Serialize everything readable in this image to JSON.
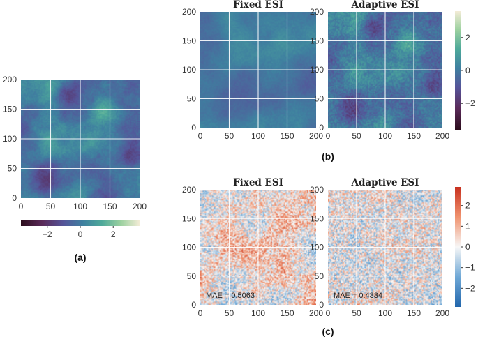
{
  "chart_data": [
    {
      "type": "heatmap",
      "panel": "a",
      "label": "(a)",
      "title": "",
      "x_range": [
        0,
        200
      ],
      "y_range": [
        0,
        200
      ],
      "xticks": [
        0,
        50,
        100,
        150,
        200
      ],
      "yticks": [
        0,
        50,
        100,
        150,
        200
      ],
      "grid": true,
      "colormap": "cubehelix-like (dark purple → teal → cream)",
      "colorbar": {
        "orientation": "horizontal",
        "range": [
          -3.6,
          3.6
        ],
        "ticks": [
          -2,
          0,
          2
        ],
        "tick_labels": [
          "−2",
          "0",
          "2"
        ]
      }
    },
    {
      "type": "heatmap",
      "panel": "b",
      "label": "(b)",
      "titles": [
        "Fixed ESI",
        "Adaptive ESI"
      ],
      "x_range": [
        0,
        200
      ],
      "y_range": [
        0,
        200
      ],
      "xticks": [
        0,
        50,
        100,
        150,
        200
      ],
      "yticks": [
        0,
        50,
        100,
        150,
        200
      ],
      "grid": true,
      "colorbar": {
        "orientation": "vertical",
        "range": [
          -3.6,
          3.6
        ],
        "ticks": [
          2,
          0,
          -2
        ],
        "tick_labels": [
          "2",
          "0",
          "−2"
        ]
      }
    },
    {
      "type": "heatmap",
      "panel": "c",
      "label": "(c)",
      "titles": [
        "Fixed ESI",
        "Adaptive ESI"
      ],
      "x_range": [
        0,
        200
      ],
      "y_range": [
        0,
        200
      ],
      "xticks": [
        0,
        50,
        100,
        150,
        200
      ],
      "yticks": [
        0,
        50,
        100,
        150,
        200
      ],
      "grid": true,
      "annotations": [
        "MAE = 0.5063",
        "MAE = 0.4334"
      ],
      "mae": [
        0.5063,
        0.4334
      ],
      "colormap": "diverging (blue → white → red)",
      "colorbar": {
        "orientation": "vertical",
        "range": [
          -2.9,
          2.9
        ],
        "ticks": [
          2,
          1,
          0,
          -1,
          -2
        ],
        "tick_labels": [
          "2",
          "1",
          "0",
          "−1",
          "−2"
        ]
      }
    }
  ]
}
